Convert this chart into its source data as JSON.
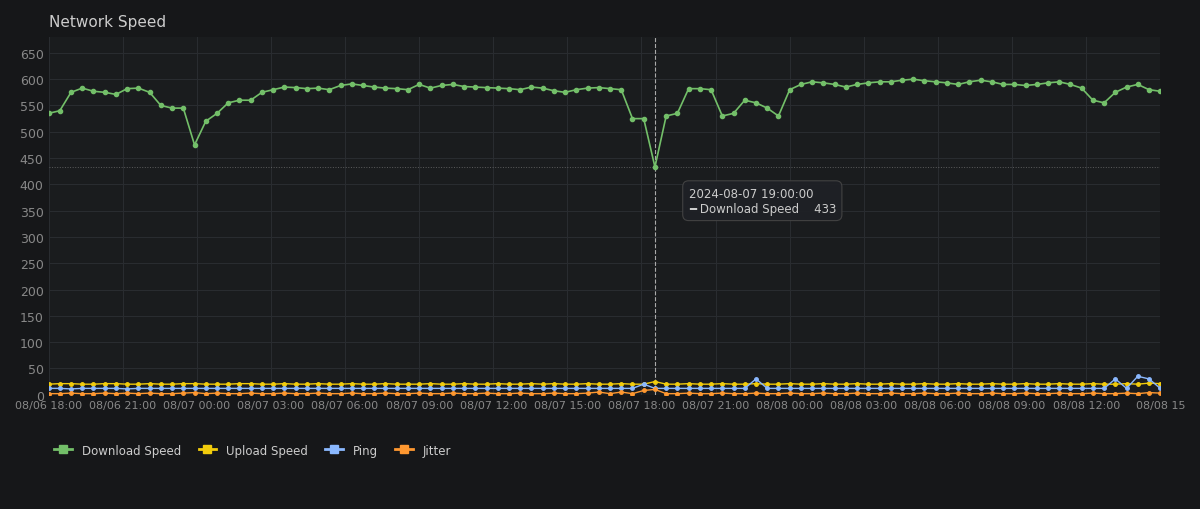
{
  "title": "Network Speed",
  "bg_color": "#161719",
  "plot_bg_color": "#1a1c1e",
  "grid_color": "#2a2d31",
  "text_color": "#cccccc",
  "axis_label_color": "#888888",
  "download_color": "#73bf69",
  "upload_color": "#f2cc0c",
  "ping_color": "#8ab8ff",
  "jitter_color": "#ff9830",
  "tooltip_bg": "#1f2126",
  "tooltip_border": "#444444",
  "tooltip_time": "2024-08-07 19:00:00",
  "tooltip_value": 433,
  "vline_x_index": 54,
  "hline_y": 433,
  "ylim": [
    0,
    680
  ],
  "yticks": [
    0,
    50,
    100,
    150,
    200,
    250,
    300,
    350,
    400,
    450,
    500,
    550,
    600,
    650
  ],
  "xtick_labels": [
    "08/06 18:00",
    "08/06 21:00",
    "08/07 00:00",
    "08/07 03:00",
    "08/07 06:00",
    "08/07 09:00",
    "08/07 12:00",
    "08/07 15:00",
    "08/07 18:00",
    "08/07 21:00",
    "08/08 00:00",
    "08/08 03:00",
    "08/08 06:00",
    "08/08 09:00",
    "08/08 12:00",
    "08/08 15"
  ],
  "download_speed": [
    535,
    540,
    575,
    583,
    577,
    575,
    571,
    582,
    583,
    575,
    550,
    545,
    545,
    475,
    520,
    535,
    555,
    560,
    560,
    575,
    580,
    585,
    584,
    582,
    583,
    580,
    588,
    591,
    588,
    585,
    583,
    582,
    580,
    590,
    583,
    588,
    590,
    586,
    585,
    584,
    583,
    582,
    580,
    585,
    583,
    578,
    575,
    580,
    583,
    584,
    582,
    580,
    525,
    525,
    433,
    530,
    535,
    582,
    582,
    580,
    530,
    535,
    560,
    555,
    545,
    530,
    580,
    590,
    595,
    593,
    590,
    585,
    590,
    593,
    595,
    595,
    598,
    600,
    597,
    595,
    593,
    590,
    595,
    598,
    595,
    590,
    590,
    588,
    590,
    593,
    595,
    590,
    583,
    560,
    555,
    575,
    585,
    590,
    580,
    577
  ],
  "upload_speed": [
    20,
    21,
    21,
    20,
    20,
    21,
    21,
    20,
    20,
    21,
    20,
    20,
    21,
    21,
    20,
    20,
    20,
    21,
    21,
    20,
    20,
    21,
    20,
    20,
    21,
    20,
    20,
    21,
    20,
    20,
    21,
    20,
    20,
    20,
    21,
    20,
    20,
    21,
    20,
    20,
    21,
    20,
    20,
    21,
    20,
    21,
    20,
    20,
    21,
    20,
    20,
    21,
    20,
    20,
    25,
    20,
    20,
    21,
    20,
    20,
    21,
    20,
    20,
    21,
    20,
    20,
    21,
    20,
    20,
    21,
    20,
    20,
    21,
    20,
    20,
    21,
    20,
    20,
    21,
    20,
    20,
    21,
    20,
    20,
    21,
    20,
    20,
    21,
    20,
    20,
    21,
    20,
    20,
    21,
    20,
    20,
    21,
    20,
    22,
    21
  ],
  "ping": [
    12,
    12,
    11,
    12,
    12,
    12,
    12,
    11,
    12,
    12,
    12,
    12,
    12,
    12,
    12,
    12,
    12,
    12,
    12,
    12,
    12,
    12,
    12,
    12,
    12,
    12,
    12,
    12,
    12,
    12,
    12,
    12,
    12,
    12,
    12,
    12,
    12,
    12,
    12,
    12,
    12,
    12,
    12,
    12,
    12,
    12,
    12,
    12,
    12,
    12,
    12,
    12,
    12,
    20,
    12,
    12,
    12,
    12,
    12,
    12,
    12,
    12,
    12,
    30,
    12,
    12,
    12,
    12,
    12,
    12,
    12,
    12,
    12,
    12,
    12,
    12,
    12,
    12,
    12,
    12,
    12,
    12,
    12,
    12,
    12,
    12,
    12,
    12,
    12,
    12,
    12,
    12,
    12,
    12,
    12,
    30,
    12,
    35,
    30,
    12
  ],
  "jitter": [
    2,
    2,
    3,
    2,
    2,
    3,
    2,
    3,
    2,
    3,
    2,
    2,
    3,
    4,
    2,
    3,
    2,
    2,
    3,
    2,
    2,
    3,
    2,
    2,
    3,
    2,
    2,
    3,
    2,
    2,
    3,
    2,
    2,
    3,
    2,
    2,
    3,
    2,
    2,
    3,
    2,
    2,
    3,
    2,
    2,
    3,
    2,
    2,
    3,
    5,
    2,
    5,
    2,
    8,
    10,
    2,
    2,
    3,
    2,
    2,
    3,
    2,
    2,
    3,
    2,
    2,
    3,
    2,
    2,
    3,
    2,
    2,
    3,
    2,
    2,
    3,
    2,
    2,
    3,
    2,
    2,
    3,
    2,
    2,
    3,
    2,
    2,
    3,
    2,
    2,
    3,
    2,
    2,
    3,
    2,
    2,
    3,
    2,
    4,
    3
  ]
}
